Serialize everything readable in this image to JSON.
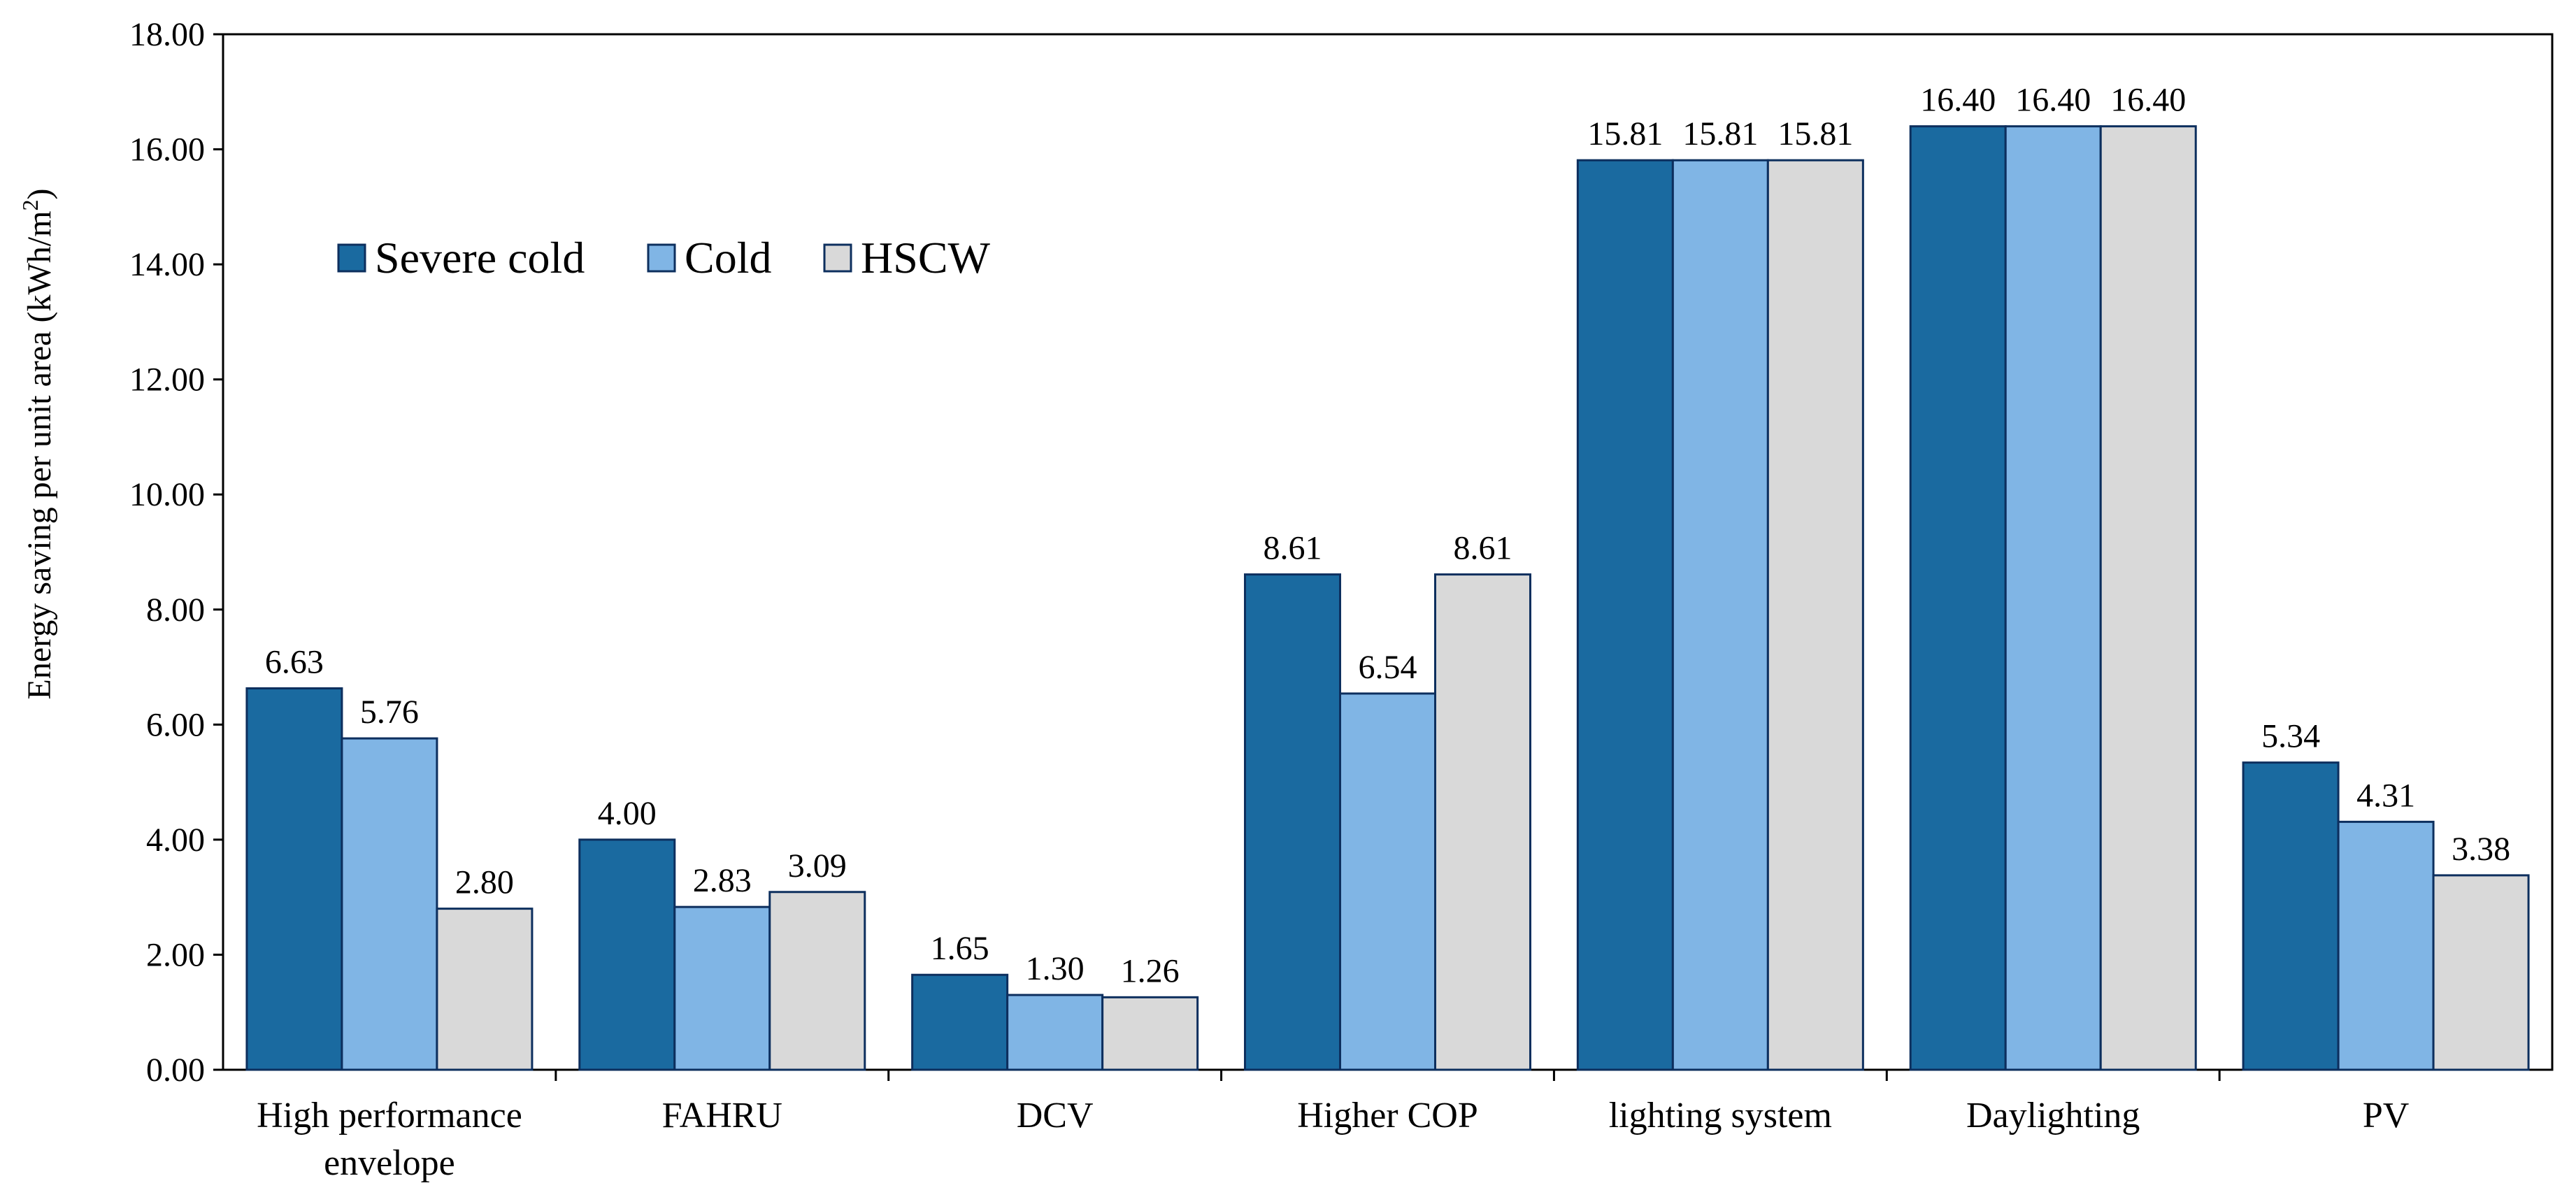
{
  "chart_data": {
    "type": "bar",
    "title": "",
    "xlabel": "",
    "ylabel": "Energy saving per unit area (kWh/m²)",
    "ylabel_main": "Energy saving per unit area (kWh/m",
    "ylabel_sup": "2",
    "ylabel_tail": ")",
    "ylim": [
      0,
      18
    ],
    "yticks": [
      "0.00",
      "2.00",
      "4.00",
      "6.00",
      "8.00",
      "10.00",
      "12.00",
      "14.00",
      "16.00",
      "18.00"
    ],
    "grid": false,
    "legend_position": "top-left",
    "categories": [
      [
        "High performance",
        "envelope"
      ],
      [
        "FAHRU"
      ],
      [
        "DCV"
      ],
      [
        "Higher COP"
      ],
      [
        "lighting system"
      ],
      [
        "Daylighting"
      ],
      [
        "PV"
      ]
    ],
    "series": [
      {
        "name": "Severe cold",
        "color": "#1a6aa0",
        "values": [
          6.63,
          4.0,
          1.65,
          8.61,
          15.81,
          16.4,
          5.34
        ],
        "labels": [
          "6.63",
          "4.00",
          "1.65",
          "8.61",
          "15.81",
          "16.40",
          "5.34"
        ]
      },
      {
        "name": "Cold",
        "color": "#80b5e5",
        "values": [
          5.76,
          2.83,
          1.3,
          6.54,
          15.81,
          16.4,
          4.31
        ],
        "labels": [
          "5.76",
          "2.83",
          "1.30",
          "6.54",
          "15.81",
          "16.40",
          "4.31"
        ]
      },
      {
        "name": "HSCW",
        "color": "#d9d9d9",
        "values": [
          2.8,
          3.09,
          1.26,
          8.61,
          15.81,
          16.4,
          3.38
        ],
        "labels": [
          "2.80",
          "3.09",
          "1.26",
          "8.61",
          "15.81",
          "16.40",
          "3.38"
        ]
      }
    ],
    "bar_edge_color": "#0d2f5e"
  }
}
